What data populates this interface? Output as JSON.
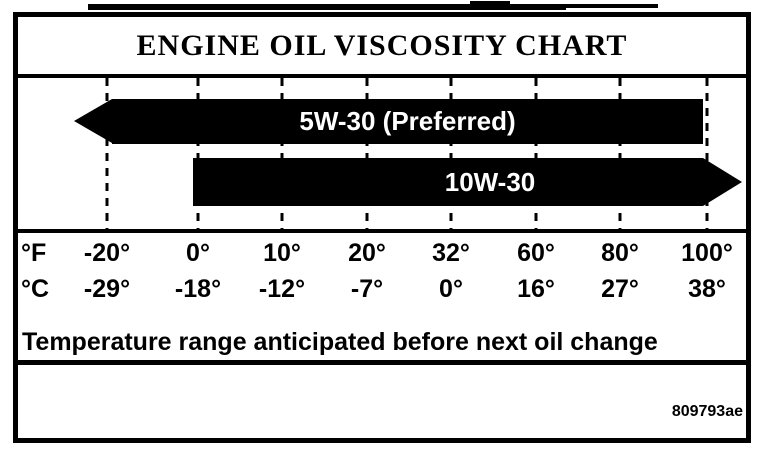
{
  "page": {
    "figure_code": "809793ae"
  },
  "chart_data": {
    "type": "bar",
    "variant": "horizontal-temperature-range-arrows",
    "title": "ENGINE OIL VISCOSITY CHART",
    "axes": {
      "fahrenheit": {
        "unit_label": "°F",
        "ticks": [
          "-20°",
          "0°",
          "10°",
          "20°",
          "32°",
          "60°",
          "80°",
          "100°"
        ]
      },
      "celsius": {
        "unit_label": "°C",
        "ticks": [
          "-29°",
          "-18°",
          "-12°",
          "-7°",
          "0°",
          "16°",
          "27°",
          "38°"
        ]
      }
    },
    "series": [
      {
        "name": "5W-30 (Preferred)",
        "min_f": null,
        "max_f": 100,
        "arrow_direction": "left",
        "range_note": "100°F and below, arrow extends below -20°F"
      },
      {
        "name": "10W-30",
        "min_f": 0,
        "max_f": null,
        "arrow_direction": "right",
        "range_note": "0°F and above, arrow extends above 100°F"
      }
    ],
    "grid": "dashed vertical line at each temperature tick",
    "legend_position": "labels inside bars",
    "annotation": "Temperature range anticipated before next oil change"
  },
  "colors": {
    "ink": "#000000",
    "paper": "#ffffff",
    "bar_fill": "#000000",
    "bar_label_text": "#ffffff"
  }
}
